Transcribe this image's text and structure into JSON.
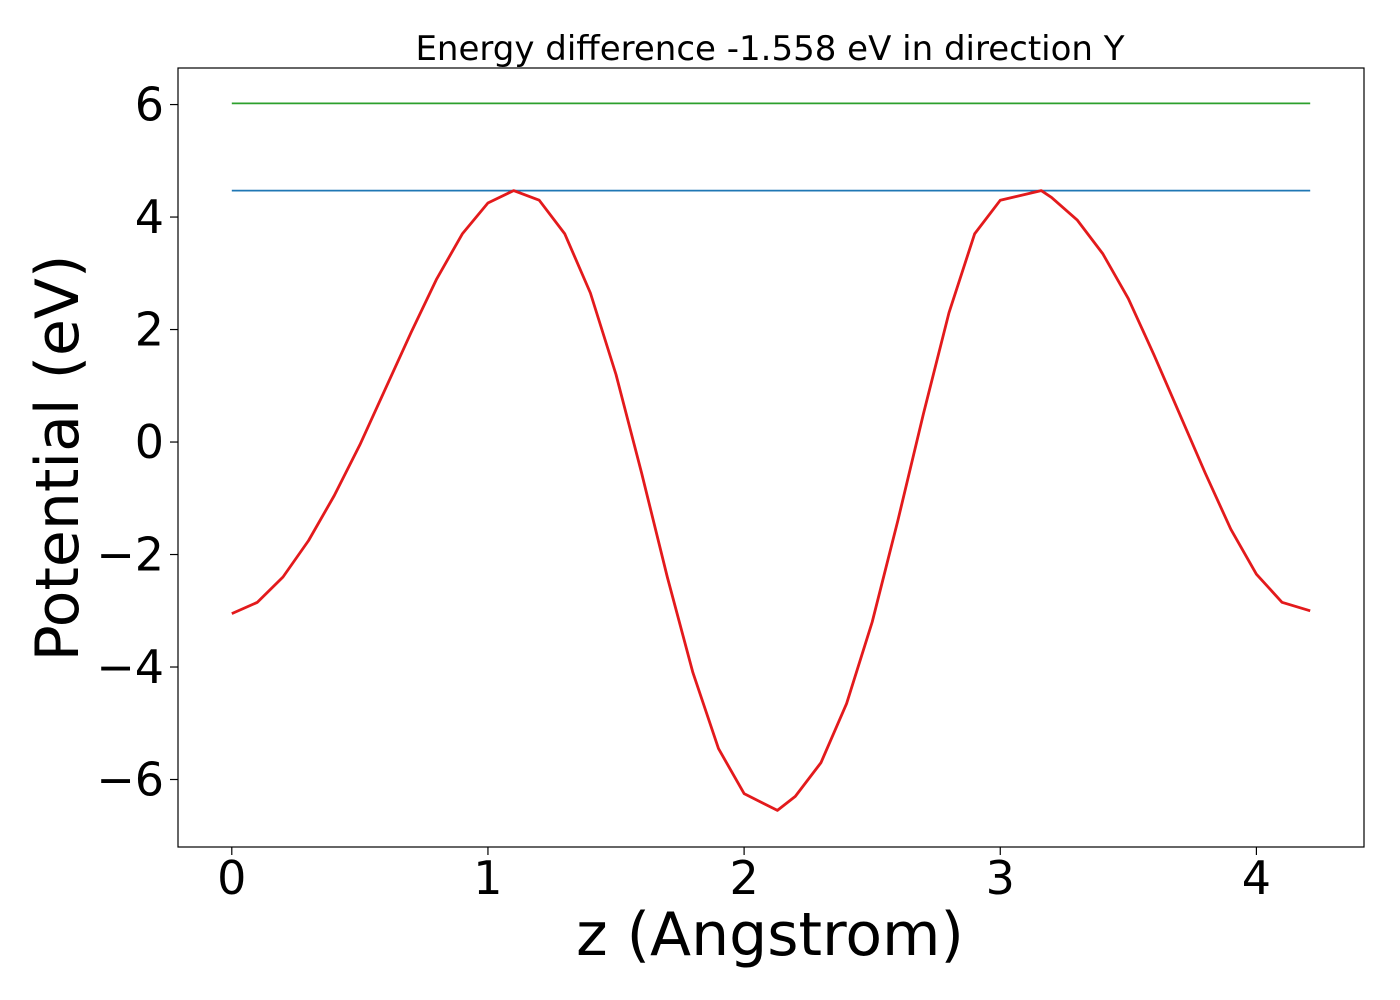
{
  "chart_data": {
    "type": "line",
    "title": "Energy difference -1.558 eV in direction Y",
    "xlabel": "z (Angstrom)",
    "ylabel": "Potential (eV)",
    "xlim": [
      -0.21,
      4.42
    ],
    "ylim": [
      -7.2,
      6.65
    ],
    "xticks": [
      0,
      1,
      2,
      3,
      4
    ],
    "xtick_labels": [
      "0",
      "1",
      "2",
      "3",
      "4"
    ],
    "yticks": [
      -6,
      -4,
      -2,
      0,
      2,
      4,
      6
    ],
    "ytick_labels": [
      "−6",
      "−4",
      "−2",
      "0",
      "2",
      "4",
      "6"
    ],
    "grid": false,
    "series": [
      {
        "color": "#2ca02c",
        "x": [
          0,
          4.21
        ],
        "y": [
          6.02,
          6.02
        ]
      },
      {
        "color": "#1f77b4",
        "x": [
          0,
          4.21
        ],
        "y": [
          4.47,
          4.47
        ]
      },
      {
        "color": "#e31a1c",
        "x": [
          0,
          0.1,
          0.2,
          0.3,
          0.4,
          0.5,
          0.6,
          0.7,
          0.8,
          0.9,
          1.0,
          1.1,
          1.2,
          1.3,
          1.4,
          1.5,
          1.6,
          1.7,
          1.8,
          1.9,
          2.0,
          2.13,
          2.2,
          2.3,
          2.4,
          2.5,
          2.6,
          2.7,
          2.8,
          2.9,
          3.0,
          3.16,
          3.2,
          3.3,
          3.4,
          3.5,
          3.6,
          3.7,
          3.8,
          3.9,
          4.0,
          4.1,
          4.21
        ],
        "y": [
          -3.05,
          -2.85,
          -2.4,
          -1.75,
          -0.95,
          -0.05,
          0.95,
          1.95,
          2.9,
          3.7,
          4.25,
          4.47,
          4.3,
          3.7,
          2.65,
          1.2,
          -0.55,
          -2.4,
          -4.1,
          -5.45,
          -6.25,
          -6.55,
          -6.3,
          -5.7,
          -4.65,
          -3.2,
          -1.4,
          0.5,
          2.3,
          3.7,
          4.3,
          4.47,
          4.35,
          3.95,
          3.35,
          2.55,
          1.55,
          0.5,
          -0.55,
          -1.55,
          -2.35,
          -2.85,
          -3.0
        ]
      }
    ]
  }
}
